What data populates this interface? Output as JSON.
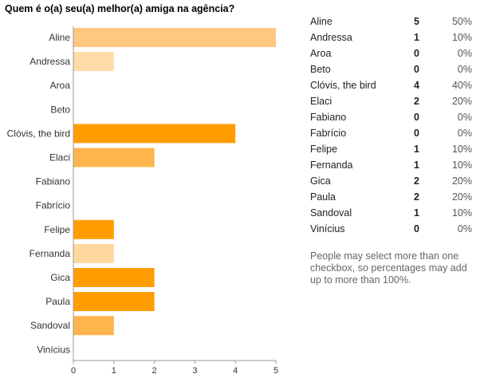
{
  "question": "Quem é o(a) seu(a) melhor(a) amiga na agência?",
  "note": "People may select more than one checkbox, so percentages may add up to more than 100%.",
  "colors": {
    "bar_dark": "#ff9d00",
    "bar_mid": "#ffb54d",
    "bar_light": "#ffd48f",
    "bar_pale": "#ffe0a8",
    "axis": "#999999",
    "grid": "#dddddd"
  },
  "chart_data": {
    "type": "bar",
    "orientation": "horizontal",
    "title": "Quem é o(a) seu(a) melhor(a) amiga na agência?",
    "categories": [
      "Aline",
      "Andressa",
      "Aroa",
      "Beto",
      "Clóvis, the bird",
      "Elaci",
      "Fabiano",
      "Fabrício",
      "Felipe",
      "Fernanda",
      "Gica",
      "Paula",
      "Sandoval",
      "Vinícius"
    ],
    "values": [
      5,
      1,
      0,
      0,
      4,
      2,
      0,
      0,
      1,
      1,
      2,
      2,
      1,
      0
    ],
    "percentages": [
      "50%",
      "10%",
      "0%",
      "0%",
      "40%",
      "20%",
      "0%",
      "0%",
      "10%",
      "10%",
      "20%",
      "20%",
      "10%",
      "0%"
    ],
    "bar_colors": [
      "#ffc880",
      "#ffdca8",
      "#ffb54d",
      "#ffb54d",
      "#ff9d00",
      "#ffb54d",
      "#ffb54d",
      "#ffb54d",
      "#ff9d00",
      "#ffd89e",
      "#ff9d00",
      "#ff9d00",
      "#ffb54d",
      "#ffb54d"
    ],
    "xlim": [
      0,
      5
    ],
    "xticks": [
      "0",
      "1",
      "2",
      "3",
      "4",
      "5"
    ],
    "grid": false
  }
}
